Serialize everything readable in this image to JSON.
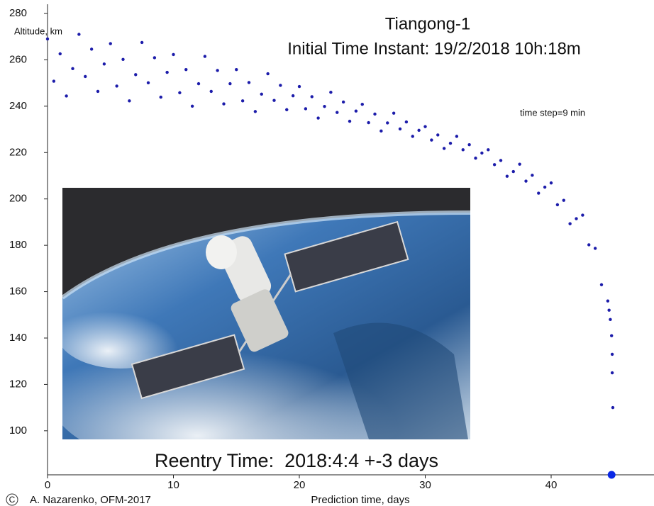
{
  "chart_data": {
    "type": "scatter",
    "title": "Tiangong-1",
    "subtitle": "Initial Time Instant: 19/2/2018 10h:18m",
    "annotations": [
      "time step=9 min",
      "Reentry Time:  2018:4:4 +-3 days"
    ],
    "y_label": "Altitude, km",
    "x_label": "Prediction time, days",
    "copyright": "C",
    "credit": "A. Nazarenko, OFM-2017",
    "xlim": [
      0,
      48
    ],
    "ylim": [
      81,
      280
    ],
    "xticks": [
      0,
      10,
      20,
      30,
      40
    ],
    "yticks": [
      100,
      120,
      140,
      160,
      180,
      200,
      220,
      240,
      260,
      280
    ],
    "series": [
      {
        "color": "#1c1caa",
        "marker_size": 2.2,
        "x": [
          0,
          0.5,
          1,
          1.5,
          2,
          2.5,
          3,
          3.5,
          4,
          4.5,
          5,
          5.5,
          6,
          6.5,
          7,
          7.5,
          8,
          8.5,
          9,
          9.5,
          10,
          10.5,
          11,
          11.5,
          12,
          12.5,
          13,
          13.5,
          14,
          14.5,
          15,
          15.5,
          16,
          16.5,
          17,
          17.5,
          18,
          18.5,
          19,
          19.5,
          20,
          20.5,
          21,
          21.5,
          22,
          22.5,
          23,
          23.5,
          24,
          24.5,
          25,
          25.5,
          26,
          26.5,
          27,
          27.5,
          28,
          28.5,
          29,
          29.5,
          30,
          30.5,
          31,
          31.5,
          32,
          32.5,
          33,
          33.5,
          34,
          34.5,
          35,
          35.5,
          36,
          36.5,
          37,
          37.5,
          38,
          38.5,
          39,
          39.5,
          40,
          40.5,
          41,
          41.5,
          42,
          42.5,
          43,
          43.5,
          44,
          44.5,
          44.6,
          44.7,
          44.8,
          44.85,
          44.85,
          44.9
        ],
        "values": [
          269,
          250.8,
          262.6,
          244.4,
          256.2,
          271,
          252.8,
          264.6,
          246.4,
          258.2,
          267,
          248.7,
          260.2,
          242.3,
          253.6,
          267.5,
          250.1,
          260.9,
          243.9,
          254.6,
          262.3,
          245.8,
          255.8,
          240,
          249.7,
          261.5,
          246.4,
          255.4,
          241,
          249.7,
          255.8,
          242.3,
          250.2,
          237.7,
          245.2,
          254,
          242.5,
          249,
          238.5,
          244.5,
          248.5,
          238.9,
          244.1,
          234.9,
          239.9,
          246,
          237.3,
          241.8,
          233.5,
          237.9,
          240.8,
          232.9,
          236.6,
          229.3,
          232.8,
          237,
          230.2,
          233.2,
          227,
          229.6,
          231.2,
          225.4,
          227.6,
          221.8,
          224,
          227,
          221.2,
          223.4,
          217.6,
          219.8,
          221.2,
          214.8,
          216.6,
          209.8,
          211.8,
          215,
          207.7,
          210.2,
          202.5,
          205.1,
          206.9,
          197.5,
          199.4,
          189.3,
          191.5,
          193,
          180.2,
          178.7,
          163,
          156,
          152,
          148,
          141,
          133,
          125,
          110
        ]
      },
      {
        "color": "#0a28e6",
        "marker_size": 5.5,
        "x": [
          44.8
        ],
        "values": [
          81
        ]
      }
    ]
  }
}
